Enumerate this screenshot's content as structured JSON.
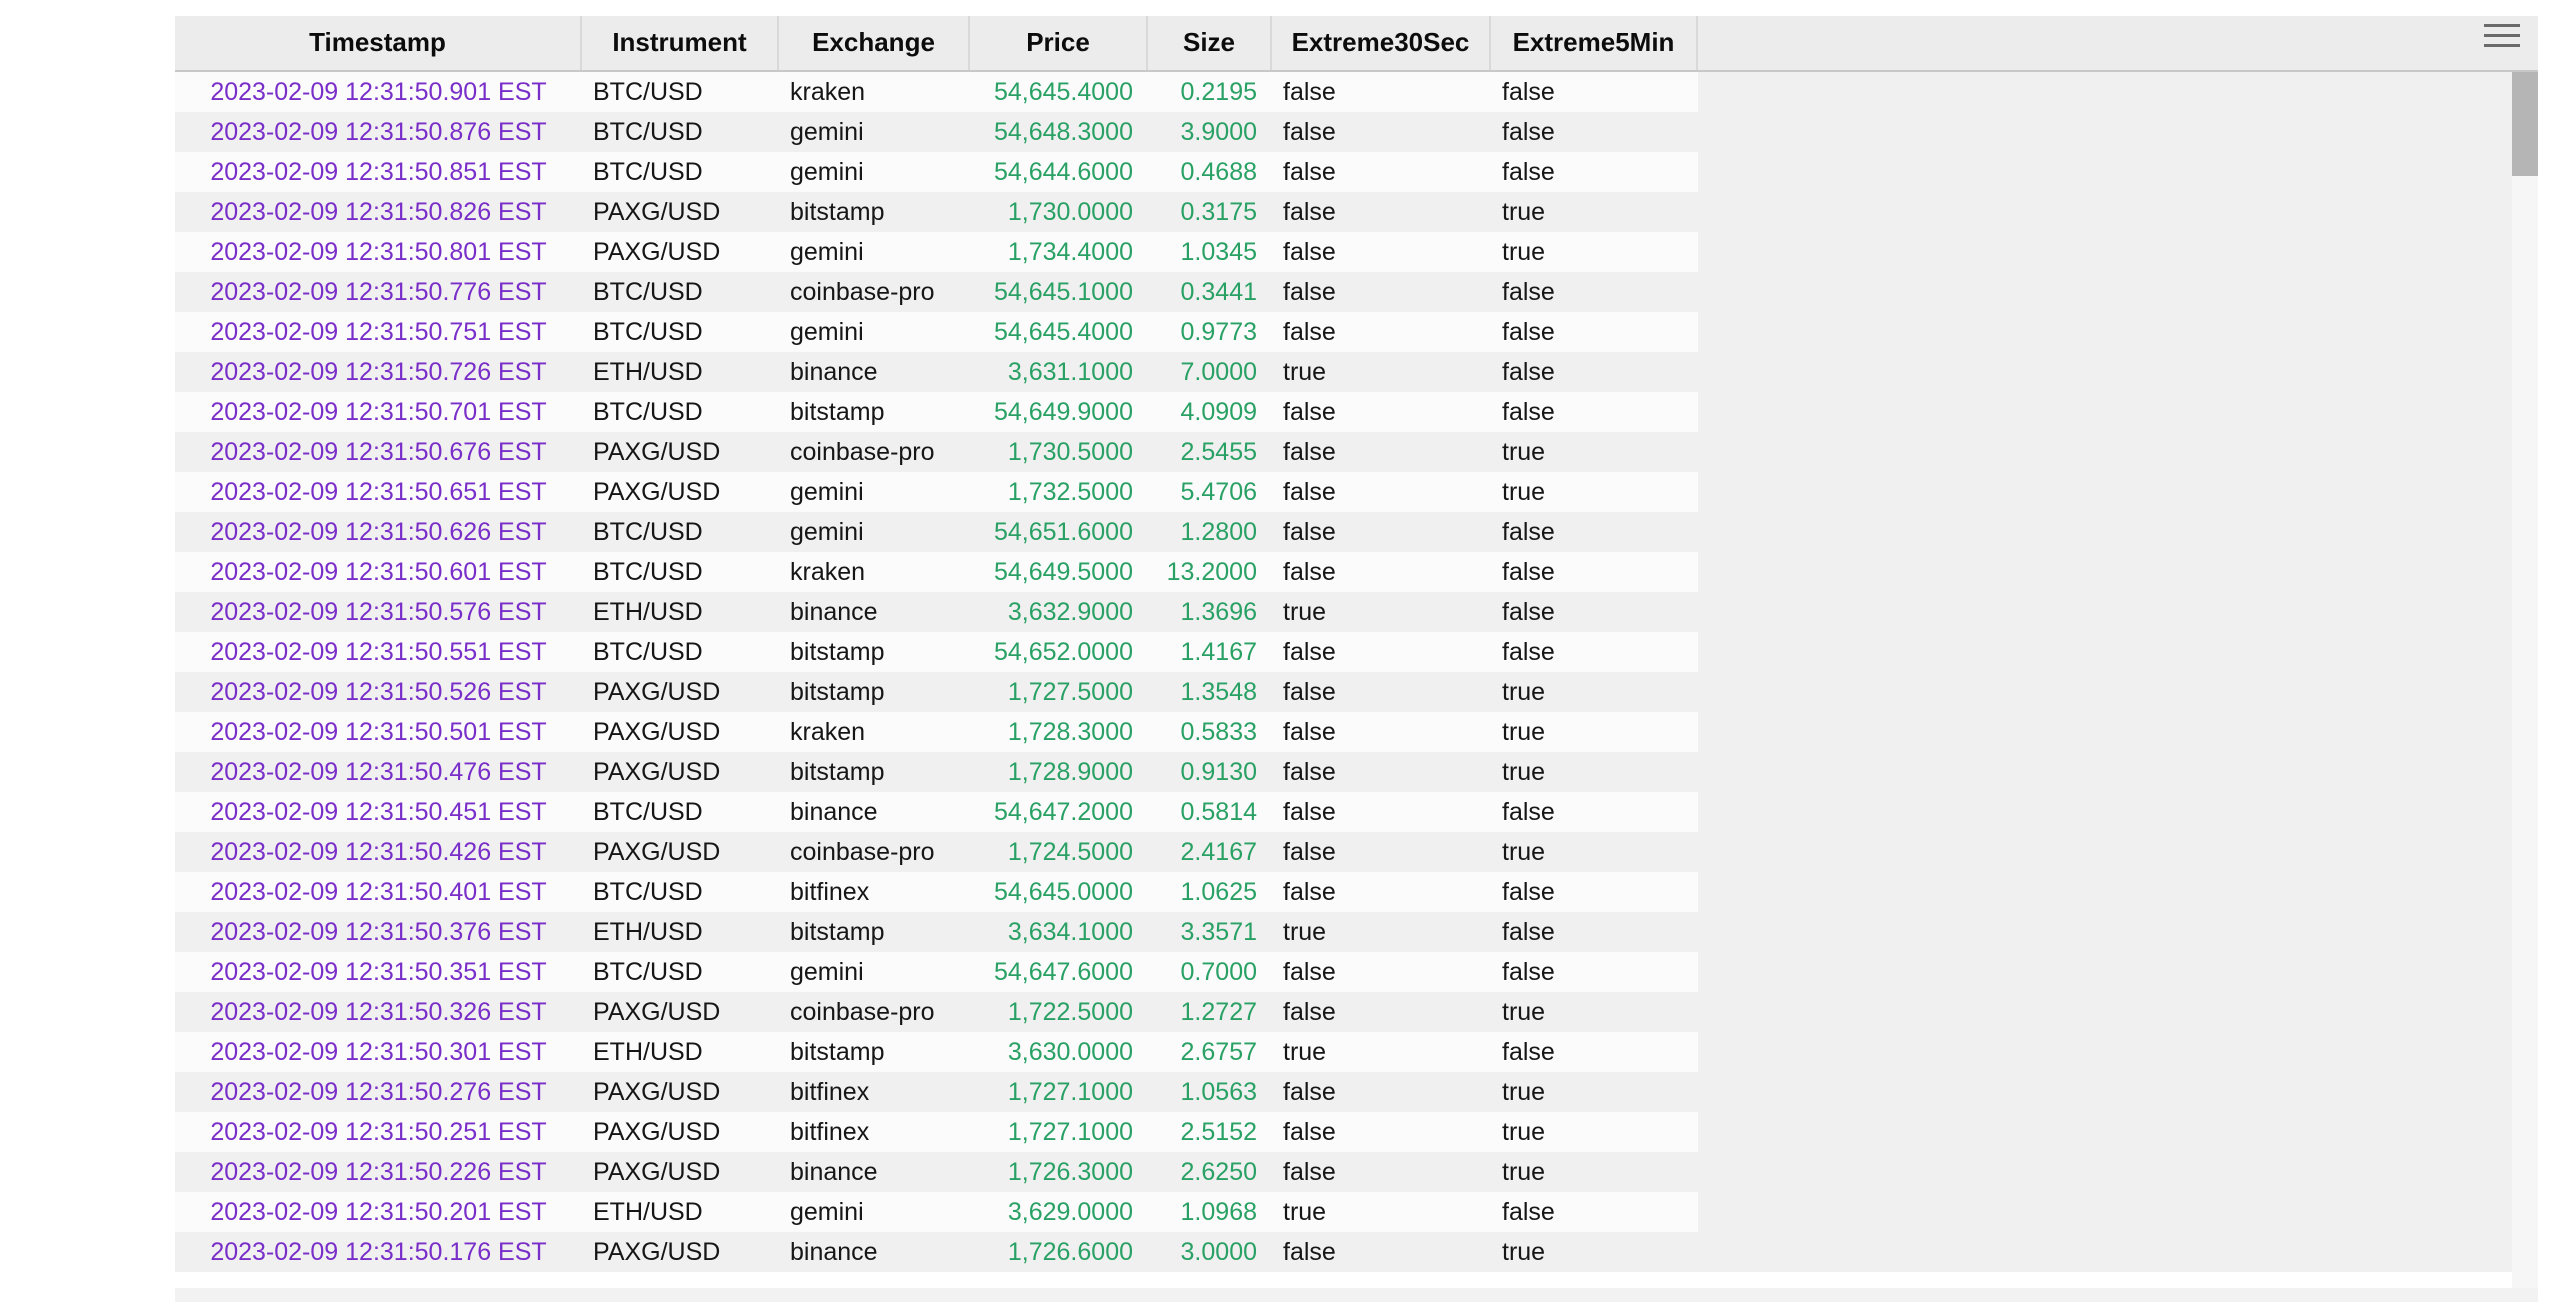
{
  "panel": {
    "menu_icon": "hamburger-menu-icon"
  },
  "table": {
    "columns": [
      {
        "key": "timestamp",
        "label": "Timestamp"
      },
      {
        "key": "instrument",
        "label": "Instrument"
      },
      {
        "key": "exchange",
        "label": "Exchange"
      },
      {
        "key": "price",
        "label": "Price"
      },
      {
        "key": "size",
        "label": "Size"
      },
      {
        "key": "extreme30sec",
        "label": "Extreme30Sec"
      },
      {
        "key": "extreme5min",
        "label": "Extreme5Min"
      }
    ],
    "rows": [
      {
        "timestamp": "2023-02-09 12:31:50.901 EST",
        "instrument": "BTC/USD",
        "exchange": "kraken",
        "price": "54,645.4000",
        "size": "0.2195",
        "extreme30sec": "false",
        "extreme5min": "false"
      },
      {
        "timestamp": "2023-02-09 12:31:50.876 EST",
        "instrument": "BTC/USD",
        "exchange": "gemini",
        "price": "54,648.3000",
        "size": "3.9000",
        "extreme30sec": "false",
        "extreme5min": "false"
      },
      {
        "timestamp": "2023-02-09 12:31:50.851 EST",
        "instrument": "BTC/USD",
        "exchange": "gemini",
        "price": "54,644.6000",
        "size": "0.4688",
        "extreme30sec": "false",
        "extreme5min": "false"
      },
      {
        "timestamp": "2023-02-09 12:31:50.826 EST",
        "instrument": "PAXG/USD",
        "exchange": "bitstamp",
        "price": "1,730.0000",
        "size": "0.3175",
        "extreme30sec": "false",
        "extreme5min": "true"
      },
      {
        "timestamp": "2023-02-09 12:31:50.801 EST",
        "instrument": "PAXG/USD",
        "exchange": "gemini",
        "price": "1,734.4000",
        "size": "1.0345",
        "extreme30sec": "false",
        "extreme5min": "true"
      },
      {
        "timestamp": "2023-02-09 12:31:50.776 EST",
        "instrument": "BTC/USD",
        "exchange": "coinbase-pro",
        "price": "54,645.1000",
        "size": "0.3441",
        "extreme30sec": "false",
        "extreme5min": "false"
      },
      {
        "timestamp": "2023-02-09 12:31:50.751 EST",
        "instrument": "BTC/USD",
        "exchange": "gemini",
        "price": "54,645.4000",
        "size": "0.9773",
        "extreme30sec": "false",
        "extreme5min": "false"
      },
      {
        "timestamp": "2023-02-09 12:31:50.726 EST",
        "instrument": "ETH/USD",
        "exchange": "binance",
        "price": "3,631.1000",
        "size": "7.0000",
        "extreme30sec": "true",
        "extreme5min": "false"
      },
      {
        "timestamp": "2023-02-09 12:31:50.701 EST",
        "instrument": "BTC/USD",
        "exchange": "bitstamp",
        "price": "54,649.9000",
        "size": "4.0909",
        "extreme30sec": "false",
        "extreme5min": "false"
      },
      {
        "timestamp": "2023-02-09 12:31:50.676 EST",
        "instrument": "PAXG/USD",
        "exchange": "coinbase-pro",
        "price": "1,730.5000",
        "size": "2.5455",
        "extreme30sec": "false",
        "extreme5min": "true"
      },
      {
        "timestamp": "2023-02-09 12:31:50.651 EST",
        "instrument": "PAXG/USD",
        "exchange": "gemini",
        "price": "1,732.5000",
        "size": "5.4706",
        "extreme30sec": "false",
        "extreme5min": "true"
      },
      {
        "timestamp": "2023-02-09 12:31:50.626 EST",
        "instrument": "BTC/USD",
        "exchange": "gemini",
        "price": "54,651.6000",
        "size": "1.2800",
        "extreme30sec": "false",
        "extreme5min": "false"
      },
      {
        "timestamp": "2023-02-09 12:31:50.601 EST",
        "instrument": "BTC/USD",
        "exchange": "kraken",
        "price": "54,649.5000",
        "size": "13.2000",
        "extreme30sec": "false",
        "extreme5min": "false"
      },
      {
        "timestamp": "2023-02-09 12:31:50.576 EST",
        "instrument": "ETH/USD",
        "exchange": "binance",
        "price": "3,632.9000",
        "size": "1.3696",
        "extreme30sec": "true",
        "extreme5min": "false"
      },
      {
        "timestamp": "2023-02-09 12:31:50.551 EST",
        "instrument": "BTC/USD",
        "exchange": "bitstamp",
        "price": "54,652.0000",
        "size": "1.4167",
        "extreme30sec": "false",
        "extreme5min": "false"
      },
      {
        "timestamp": "2023-02-09 12:31:50.526 EST",
        "instrument": "PAXG/USD",
        "exchange": "bitstamp",
        "price": "1,727.5000",
        "size": "1.3548",
        "extreme30sec": "false",
        "extreme5min": "true"
      },
      {
        "timestamp": "2023-02-09 12:31:50.501 EST",
        "instrument": "PAXG/USD",
        "exchange": "kraken",
        "price": "1,728.3000",
        "size": "0.5833",
        "extreme30sec": "false",
        "extreme5min": "true"
      },
      {
        "timestamp": "2023-02-09 12:31:50.476 EST",
        "instrument": "PAXG/USD",
        "exchange": "bitstamp",
        "price": "1,728.9000",
        "size": "0.9130",
        "extreme30sec": "false",
        "extreme5min": "true"
      },
      {
        "timestamp": "2023-02-09 12:31:50.451 EST",
        "instrument": "BTC/USD",
        "exchange": "binance",
        "price": "54,647.2000",
        "size": "0.5814",
        "extreme30sec": "false",
        "extreme5min": "false"
      },
      {
        "timestamp": "2023-02-09 12:31:50.426 EST",
        "instrument": "PAXG/USD",
        "exchange": "coinbase-pro",
        "price": "1,724.5000",
        "size": "2.4167",
        "extreme30sec": "false",
        "extreme5min": "true"
      },
      {
        "timestamp": "2023-02-09 12:31:50.401 EST",
        "instrument": "BTC/USD",
        "exchange": "bitfinex",
        "price": "54,645.0000",
        "size": "1.0625",
        "extreme30sec": "false",
        "extreme5min": "false"
      },
      {
        "timestamp": "2023-02-09 12:31:50.376 EST",
        "instrument": "ETH/USD",
        "exchange": "bitstamp",
        "price": "3,634.1000",
        "size": "3.3571",
        "extreme30sec": "true",
        "extreme5min": "false"
      },
      {
        "timestamp": "2023-02-09 12:31:50.351 EST",
        "instrument": "BTC/USD",
        "exchange": "gemini",
        "price": "54,647.6000",
        "size": "0.7000",
        "extreme30sec": "false",
        "extreme5min": "false"
      },
      {
        "timestamp": "2023-02-09 12:31:50.326 EST",
        "instrument": "PAXG/USD",
        "exchange": "coinbase-pro",
        "price": "1,722.5000",
        "size": "1.2727",
        "extreme30sec": "false",
        "extreme5min": "true"
      },
      {
        "timestamp": "2023-02-09 12:31:50.301 EST",
        "instrument": "ETH/USD",
        "exchange": "bitstamp",
        "price": "3,630.0000",
        "size": "2.6757",
        "extreme30sec": "true",
        "extreme5min": "false"
      },
      {
        "timestamp": "2023-02-09 12:31:50.276 EST",
        "instrument": "PAXG/USD",
        "exchange": "bitfinex",
        "price": "1,727.1000",
        "size": "1.0563",
        "extreme30sec": "false",
        "extreme5min": "true"
      },
      {
        "timestamp": "2023-02-09 12:31:50.251 EST",
        "instrument": "PAXG/USD",
        "exchange": "bitfinex",
        "price": "1,727.1000",
        "size": "2.5152",
        "extreme30sec": "false",
        "extreme5min": "true"
      },
      {
        "timestamp": "2023-02-09 12:31:50.226 EST",
        "instrument": "PAXG/USD",
        "exchange": "binance",
        "price": "1,726.3000",
        "size": "2.6250",
        "extreme30sec": "false",
        "extreme5min": "true"
      },
      {
        "timestamp": "2023-02-09 12:31:50.201 EST",
        "instrument": "ETH/USD",
        "exchange": "gemini",
        "price": "3,629.0000",
        "size": "1.0968",
        "extreme30sec": "true",
        "extreme5min": "false"
      },
      {
        "timestamp": "2023-02-09 12:31:50.176 EST",
        "instrument": "PAXG/USD",
        "exchange": "binance",
        "price": "1,726.6000",
        "size": "3.0000",
        "extreme30sec": "false",
        "extreme5min": "true"
      }
    ]
  },
  "colors": {
    "timestamp_text": "#7a2ec9",
    "number_text": "#29a164",
    "body_text": "#161616",
    "header_text": "#0c0c0c",
    "header_bg": "#ececec",
    "header_border": "#c8c8c8",
    "header_separator": "#d9d9d9",
    "row_odd": "#fbfbfb",
    "row_even": "#f0f0f0",
    "scroll_track": "#f6f6f6",
    "scroll_thumb": "#b5b5b5",
    "hscroll_track": "#f2f2f2",
    "hamburger": "#6b6b6b"
  }
}
